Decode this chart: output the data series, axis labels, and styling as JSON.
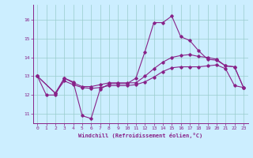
{
  "xlabel": "Windchill (Refroidissement éolien,°C)",
  "background_color": "#cceeff",
  "grid_color": "#99cccc",
  "line_color": "#882288",
  "xlim": [
    -0.5,
    23.5
  ],
  "ylim": [
    10.5,
    16.8
  ],
  "yticks": [
    11,
    12,
    13,
    14,
    15,
    16
  ],
  "xticks": [
    0,
    1,
    2,
    3,
    4,
    5,
    6,
    7,
    8,
    9,
    10,
    11,
    12,
    13,
    14,
    15,
    16,
    17,
    18,
    19,
    20,
    21,
    22,
    23
  ],
  "line1_x": [
    0,
    1,
    2,
    3,
    4,
    5,
    6,
    7,
    8,
    9,
    10,
    11,
    12,
    13,
    14,
    15,
    16,
    17,
    18,
    19,
    20,
    21,
    22,
    23
  ],
  "line1_y": [
    13.0,
    12.0,
    12.0,
    12.9,
    12.7,
    10.9,
    10.75,
    12.3,
    12.6,
    12.6,
    12.6,
    12.9,
    14.3,
    15.85,
    15.85,
    16.2,
    15.1,
    14.9,
    14.35,
    13.9,
    13.85,
    13.55,
    13.5,
    12.4
  ],
  "line2_x": [
    0,
    2,
    3,
    4,
    5,
    6,
    7,
    8,
    9,
    10,
    11,
    12,
    13,
    14,
    15,
    16,
    17,
    18,
    19,
    20,
    21,
    22,
    23
  ],
  "line2_y": [
    13.0,
    12.1,
    12.9,
    12.65,
    12.45,
    12.45,
    12.55,
    12.65,
    12.65,
    12.65,
    12.65,
    13.0,
    13.4,
    13.75,
    14.0,
    14.1,
    14.15,
    14.05,
    14.0,
    13.9,
    13.55,
    13.5,
    12.4
  ],
  "line3_x": [
    0,
    2,
    3,
    4,
    5,
    6,
    7,
    8,
    9,
    10,
    11,
    12,
    13,
    14,
    15,
    16,
    17,
    18,
    19,
    20,
    21,
    22,
    23
  ],
  "line3_y": [
    13.0,
    12.1,
    12.75,
    12.55,
    12.4,
    12.35,
    12.4,
    12.5,
    12.5,
    12.5,
    12.55,
    12.7,
    12.95,
    13.25,
    13.45,
    13.5,
    13.5,
    13.5,
    13.55,
    13.6,
    13.4,
    12.5,
    12.4
  ]
}
